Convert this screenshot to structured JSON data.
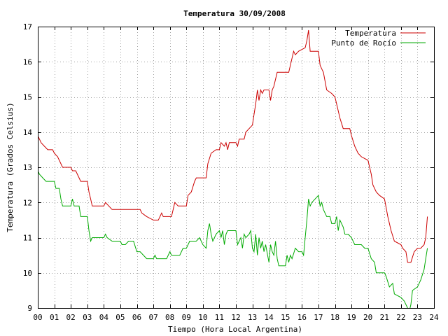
{
  "chart_data": {
    "type": "line",
    "title": "Temperatura 30/09/2008",
    "xlabel": "Tiempo (Hora Local Argentina)",
    "ylabel": "Temperatura (Grados Celsius)",
    "xlim": [
      0,
      24
    ],
    "ylim": [
      9,
      17
    ],
    "x_tick_labels": [
      "00",
      "01",
      "02",
      "03",
      "04",
      "05",
      "06",
      "07",
      "08",
      "09",
      "10",
      "11",
      "12",
      "13",
      "14",
      "15",
      "16",
      "17",
      "18",
      "19",
      "20",
      "21",
      "22",
      "23",
      "24"
    ],
    "y_tick_labels": [
      "9",
      "10",
      "11",
      "12",
      "13",
      "14",
      "15",
      "16",
      "17"
    ],
    "grid": true,
    "legend_position": "top-right",
    "series": [
      {
        "name": "Temperatura",
        "color": "#cc0000",
        "points": [
          [
            0.0,
            13.9
          ],
          [
            0.1,
            13.8
          ],
          [
            0.2,
            13.7
          ],
          [
            0.4,
            13.6
          ],
          [
            0.6,
            13.5
          ],
          [
            0.9,
            13.5
          ],
          [
            1.0,
            13.4
          ],
          [
            1.2,
            13.3
          ],
          [
            1.3,
            13.2
          ],
          [
            1.5,
            13.0
          ],
          [
            2.0,
            13.0
          ],
          [
            2.1,
            12.9
          ],
          [
            2.3,
            12.9
          ],
          [
            2.5,
            12.7
          ],
          [
            2.6,
            12.6
          ],
          [
            3.0,
            12.6
          ],
          [
            3.1,
            12.3
          ],
          [
            3.2,
            12.1
          ],
          [
            3.3,
            11.9
          ],
          [
            4.0,
            11.9
          ],
          [
            4.1,
            12.0
          ],
          [
            4.3,
            11.9
          ],
          [
            4.5,
            11.8
          ],
          [
            6.2,
            11.8
          ],
          [
            6.3,
            11.7
          ],
          [
            6.6,
            11.6
          ],
          [
            7.0,
            11.5
          ],
          [
            7.3,
            11.5
          ],
          [
            7.5,
            11.7
          ],
          [
            7.6,
            11.6
          ],
          [
            8.1,
            11.6
          ],
          [
            8.2,
            11.8
          ],
          [
            8.3,
            12.0
          ],
          [
            8.5,
            11.9
          ],
          [
            9.0,
            11.9
          ],
          [
            9.1,
            12.2
          ],
          [
            9.3,
            12.3
          ],
          [
            9.5,
            12.6
          ],
          [
            9.6,
            12.7
          ],
          [
            10.0,
            12.7
          ],
          [
            10.2,
            12.7
          ],
          [
            10.3,
            13.1
          ],
          [
            10.5,
            13.4
          ],
          [
            10.8,
            13.5
          ],
          [
            11.0,
            13.5
          ],
          [
            11.1,
            13.7
          ],
          [
            11.3,
            13.6
          ],
          [
            11.4,
            13.7
          ],
          [
            11.5,
            13.5
          ],
          [
            11.6,
            13.7
          ],
          [
            12.0,
            13.7
          ],
          [
            12.1,
            13.6
          ],
          [
            12.2,
            13.8
          ],
          [
            12.5,
            13.8
          ],
          [
            12.6,
            14.0
          ],
          [
            12.8,
            14.1
          ],
          [
            13.0,
            14.2
          ],
          [
            13.1,
            14.5
          ],
          [
            13.2,
            14.8
          ],
          [
            13.3,
            15.2
          ],
          [
            13.4,
            14.9
          ],
          [
            13.5,
            15.2
          ],
          [
            13.6,
            15.1
          ],
          [
            13.7,
            15.2
          ],
          [
            14.0,
            15.2
          ],
          [
            14.1,
            14.9
          ],
          [
            14.2,
            15.2
          ],
          [
            14.3,
            15.3
          ],
          [
            14.5,
            15.7
          ],
          [
            15.0,
            15.7
          ],
          [
            15.2,
            15.7
          ],
          [
            15.3,
            15.9
          ],
          [
            15.5,
            16.3
          ],
          [
            15.6,
            16.2
          ],
          [
            15.8,
            16.3
          ],
          [
            16.2,
            16.4
          ],
          [
            16.3,
            16.6
          ],
          [
            16.4,
            16.9
          ],
          [
            16.5,
            16.3
          ],
          [
            17.0,
            16.3
          ],
          [
            17.1,
            15.9
          ],
          [
            17.2,
            15.8
          ],
          [
            17.3,
            15.7
          ],
          [
            17.5,
            15.2
          ],
          [
            17.8,
            15.1
          ],
          [
            18.0,
            15.0
          ],
          [
            18.1,
            14.8
          ],
          [
            18.3,
            14.4
          ],
          [
            18.5,
            14.1
          ],
          [
            18.9,
            14.1
          ],
          [
            19.0,
            13.9
          ],
          [
            19.2,
            13.6
          ],
          [
            19.4,
            13.4
          ],
          [
            19.6,
            13.3
          ],
          [
            20.0,
            13.2
          ],
          [
            20.2,
            12.8
          ],
          [
            20.3,
            12.5
          ],
          [
            20.5,
            12.3
          ],
          [
            20.7,
            12.2
          ],
          [
            21.0,
            12.1
          ],
          [
            21.2,
            11.6
          ],
          [
            21.4,
            11.2
          ],
          [
            21.6,
            10.9
          ],
          [
            22.0,
            10.8
          ],
          [
            22.1,
            10.7
          ],
          [
            22.3,
            10.6
          ],
          [
            22.4,
            10.3
          ],
          [
            22.6,
            10.3
          ],
          [
            22.8,
            10.6
          ],
          [
            23.0,
            10.7
          ],
          [
            23.2,
            10.7
          ],
          [
            23.4,
            10.8
          ],
          [
            23.5,
            11.0
          ],
          [
            23.6,
            11.6
          ]
        ]
      },
      {
        "name": "Punto de Rocío",
        "color": "#00aa00",
        "points": [
          [
            0.0,
            12.9
          ],
          [
            0.1,
            12.8
          ],
          [
            0.3,
            12.7
          ],
          [
            0.5,
            12.6
          ],
          [
            1.0,
            12.6
          ],
          [
            1.1,
            12.4
          ],
          [
            1.3,
            12.4
          ],
          [
            1.4,
            12.1
          ],
          [
            1.5,
            11.9
          ],
          [
            2.0,
            11.9
          ],
          [
            2.1,
            12.1
          ],
          [
            2.2,
            11.9
          ],
          [
            2.5,
            11.9
          ],
          [
            2.6,
            11.6
          ],
          [
            3.0,
            11.6
          ],
          [
            3.1,
            11.2
          ],
          [
            3.2,
            10.9
          ],
          [
            3.3,
            11.0
          ],
          [
            3.5,
            11.0
          ],
          [
            4.0,
            11.0
          ],
          [
            4.1,
            11.1
          ],
          [
            4.2,
            11.0
          ],
          [
            4.5,
            10.9
          ],
          [
            5.0,
            10.9
          ],
          [
            5.1,
            10.8
          ],
          [
            5.3,
            10.8
          ],
          [
            5.5,
            10.9
          ],
          [
            5.8,
            10.9
          ],
          [
            6.0,
            10.6
          ],
          [
            6.2,
            10.6
          ],
          [
            6.4,
            10.5
          ],
          [
            6.6,
            10.4
          ],
          [
            7.0,
            10.4
          ],
          [
            7.1,
            10.5
          ],
          [
            7.2,
            10.4
          ],
          [
            7.5,
            10.4
          ],
          [
            7.8,
            10.4
          ],
          [
            8.0,
            10.6
          ],
          [
            8.1,
            10.5
          ],
          [
            8.3,
            10.5
          ],
          [
            8.6,
            10.5
          ],
          [
            8.8,
            10.7
          ],
          [
            9.0,
            10.7
          ],
          [
            9.2,
            10.9
          ],
          [
            9.4,
            10.9
          ],
          [
            9.6,
            10.9
          ],
          [
            9.8,
            11.0
          ],
          [
            10.0,
            10.8
          ],
          [
            10.2,
            10.7
          ],
          [
            10.3,
            11.2
          ],
          [
            10.4,
            11.4
          ],
          [
            10.5,
            11.1
          ],
          [
            10.6,
            10.9
          ],
          [
            10.8,
            11.1
          ],
          [
            11.0,
            11.2
          ],
          [
            11.1,
            11.0
          ],
          [
            11.2,
            11.2
          ],
          [
            11.3,
            10.8
          ],
          [
            11.4,
            11.1
          ],
          [
            11.5,
            11.2
          ],
          [
            12.0,
            11.2
          ],
          [
            12.1,
            10.8
          ],
          [
            12.2,
            10.9
          ],
          [
            12.3,
            11.0
          ],
          [
            12.4,
            10.7
          ],
          [
            12.5,
            11.1
          ],
          [
            12.6,
            11.0
          ],
          [
            12.8,
            11.1
          ],
          [
            12.9,
            11.2
          ],
          [
            13.0,
            10.7
          ],
          [
            13.1,
            10.6
          ],
          [
            13.2,
            11.1
          ],
          [
            13.3,
            10.5
          ],
          [
            13.4,
            11.0
          ],
          [
            13.5,
            10.7
          ],
          [
            13.6,
            10.9
          ],
          [
            13.7,
            10.6
          ],
          [
            13.8,
            10.8
          ],
          [
            14.0,
            10.3
          ],
          [
            14.1,
            10.8
          ],
          [
            14.2,
            10.6
          ],
          [
            14.3,
            10.5
          ],
          [
            14.4,
            10.9
          ],
          [
            14.5,
            10.4
          ],
          [
            14.6,
            10.2
          ],
          [
            15.0,
            10.2
          ],
          [
            15.1,
            10.5
          ],
          [
            15.2,
            10.3
          ],
          [
            15.3,
            10.5
          ],
          [
            15.4,
            10.4
          ],
          [
            15.6,
            10.7
          ],
          [
            15.8,
            10.6
          ],
          [
            16.0,
            10.6
          ],
          [
            16.1,
            10.5
          ],
          [
            16.2,
            11.0
          ],
          [
            16.3,
            11.5
          ],
          [
            16.4,
            12.1
          ],
          [
            16.5,
            11.9
          ],
          [
            16.6,
            12.0
          ],
          [
            16.8,
            12.1
          ],
          [
            17.0,
            12.2
          ],
          [
            17.1,
            11.9
          ],
          [
            17.2,
            12.0
          ],
          [
            17.3,
            11.8
          ],
          [
            17.5,
            11.6
          ],
          [
            17.7,
            11.6
          ],
          [
            17.8,
            11.4
          ],
          [
            18.0,
            11.4
          ],
          [
            18.1,
            11.6
          ],
          [
            18.2,
            11.2
          ],
          [
            18.3,
            11.5
          ],
          [
            18.5,
            11.3
          ],
          [
            18.6,
            11.1
          ],
          [
            18.8,
            11.1
          ],
          [
            19.0,
            11.0
          ],
          [
            19.2,
            10.8
          ],
          [
            19.4,
            10.8
          ],
          [
            19.6,
            10.8
          ],
          [
            19.8,
            10.7
          ],
          [
            20.0,
            10.7
          ],
          [
            20.2,
            10.4
          ],
          [
            20.4,
            10.3
          ],
          [
            20.5,
            10.0
          ],
          [
            20.8,
            10.0
          ],
          [
            21.0,
            10.0
          ],
          [
            21.1,
            9.9
          ],
          [
            21.3,
            9.6
          ],
          [
            21.5,
            9.7
          ],
          [
            21.6,
            9.4
          ],
          [
            22.0,
            9.3
          ],
          [
            22.2,
            9.2
          ],
          [
            22.4,
            9.0
          ],
          [
            22.5,
            8.9
          ],
          [
            22.6,
            9.1
          ],
          [
            22.7,
            9.5
          ],
          [
            23.0,
            9.6
          ],
          [
            23.2,
            9.8
          ],
          [
            23.4,
            10.1
          ],
          [
            23.5,
            10.4
          ],
          [
            23.6,
            10.7
          ]
        ]
      }
    ]
  }
}
